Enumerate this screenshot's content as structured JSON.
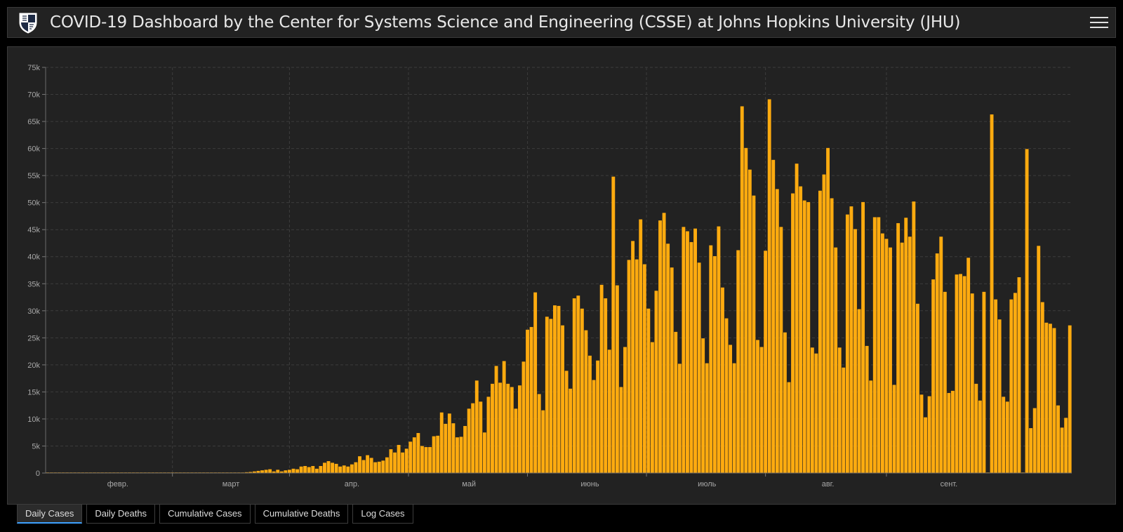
{
  "header": {
    "title": "COVID-19 Dashboard by the Center for Systems Science and Engineering (CSSE) at Johns Hopkins University (JHU)",
    "logo_icon": "jhu-shield-icon",
    "menu_icon": "hamburger-menu-icon"
  },
  "tabs": [
    {
      "label": "Daily Cases",
      "active": true
    },
    {
      "label": "Daily Deaths",
      "active": false
    },
    {
      "label": "Cumulative Cases",
      "active": false
    },
    {
      "label": "Cumulative Deaths",
      "active": false
    },
    {
      "label": "Log Cases",
      "active": false
    }
  ],
  "colors": {
    "bar": "#ffab0f",
    "background": "#222222",
    "grid": "#3c3c3c",
    "active_tab": "#3ea1ff"
  },
  "chart_data": {
    "type": "bar",
    "title": "",
    "xlabel": "",
    "ylabel": "",
    "ylim": [
      0,
      75000
    ],
    "yticks": [
      {
        "value": 0,
        "label": "0"
      },
      {
        "value": 5000,
        "label": "5k"
      },
      {
        "value": 10000,
        "label": "10k"
      },
      {
        "value": 15000,
        "label": "15k"
      },
      {
        "value": 20000,
        "label": "20k"
      },
      {
        "value": 25000,
        "label": "25k"
      },
      {
        "value": 30000,
        "label": "30k"
      },
      {
        "value": 35000,
        "label": "35k"
      },
      {
        "value": 40000,
        "label": "40k"
      },
      {
        "value": 45000,
        "label": "45k"
      },
      {
        "value": 50000,
        "label": "50k"
      },
      {
        "value": 55000,
        "label": "55k"
      },
      {
        "value": 60000,
        "label": "60k"
      },
      {
        "value": 65000,
        "label": "65k"
      },
      {
        "value": 70000,
        "label": "70k"
      },
      {
        "value": 75000,
        "label": "75k"
      }
    ],
    "xticks": [
      {
        "index": 18,
        "label": "февр."
      },
      {
        "index": 47,
        "label": "март"
      },
      {
        "index": 78,
        "label": "апр."
      },
      {
        "index": 108,
        "label": "май"
      },
      {
        "index": 139,
        "label": "июнь"
      },
      {
        "index": 169,
        "label": "июль"
      },
      {
        "index": 200,
        "label": "авг."
      },
      {
        "index": 231,
        "label": "сент."
      }
    ],
    "grid": true,
    "legend": "none",
    "values": [
      0,
      0,
      0,
      0,
      0,
      0,
      0,
      0,
      0,
      0,
      0,
      0,
      0,
      0,
      0,
      0,
      0,
      0,
      0,
      0,
      0,
      0,
      0,
      0,
      0,
      0,
      0,
      0,
      0,
      0,
      0,
      0,
      0,
      0,
      0,
      0,
      0,
      0,
      0,
      0,
      0,
      0,
      0,
      0,
      0,
      0,
      0,
      0,
      0,
      0,
      100,
      150,
      200,
      300,
      400,
      500,
      600,
      700,
      300,
      600,
      300,
      500,
      600,
      800,
      700,
      1200,
      1300,
      1100,
      1300,
      800,
      1300,
      1900,
      2200,
      1900,
      1700,
      1200,
      1400,
      1200,
      1600,
      2000,
      3100,
      2400,
      3300,
      2800,
      2000,
      2100,
      2300,
      2900,
      4400,
      3800,
      5200,
      3800,
      4500,
      5800,
      6600,
      7400,
      5000,
      4800,
      4800,
      6800,
      6900,
      11200,
      9100,
      11000,
      9200,
      6600,
      6700,
      8700,
      11900,
      12900,
      17100,
      13200,
      7500,
      14100,
      16500,
      19800,
      16700,
      20700,
      16500,
      15900,
      11900,
      16200,
      20600,
      26500,
      27000,
      33400,
      14600,
      11600,
      28900,
      28500,
      31000,
      30900,
      27300,
      18900,
      15600,
      32300,
      32800,
      30400,
      26400,
      21700,
      17200,
      20800,
      34800,
      32300,
      22800,
      54800,
      34700,
      15900,
      23300,
      39400,
      42900,
      39500,
      46900,
      38600,
      30400,
      24200,
      33700,
      46700,
      48100,
      42400,
      38000,
      26100,
      20200,
      45500,
      44700,
      42700,
      45200,
      38900,
      24900,
      20300,
      42100,
      40100,
      45600,
      34300,
      28600,
      23700,
      20300,
      41200,
      67800,
      60100,
      56100,
      51300,
      24600,
      23300,
      41100,
      69100,
      57900,
      52500,
      45500,
      26000,
      16800,
      51700,
      57200,
      53000,
      50400,
      50100,
      23200,
      22100,
      52200,
      55200,
      60100,
      50800,
      41700,
      23200,
      19500,
      47800,
      49300,
      45100,
      30300,
      50100,
      23500,
      17100,
      47300,
      47300,
      44300,
      43300,
      41700,
      16300,
      46200,
      42600,
      47200,
      43700,
      50200,
      31300,
      14500,
      10300,
      14200,
      35800,
      40600,
      43700,
      33500,
      14800,
      15200,
      36700,
      36800,
      36400,
      39800,
      33200,
      16500,
      13400,
      33500,
      0,
      66300,
      32100,
      28400,
      14100,
      13200,
      32100,
      33300,
      36200,
      0,
      59900,
      8300,
      12000,
      42000,
      31600,
      27800,
      27600,
      26800,
      12500,
      8400,
      10200,
      27300
    ]
  }
}
